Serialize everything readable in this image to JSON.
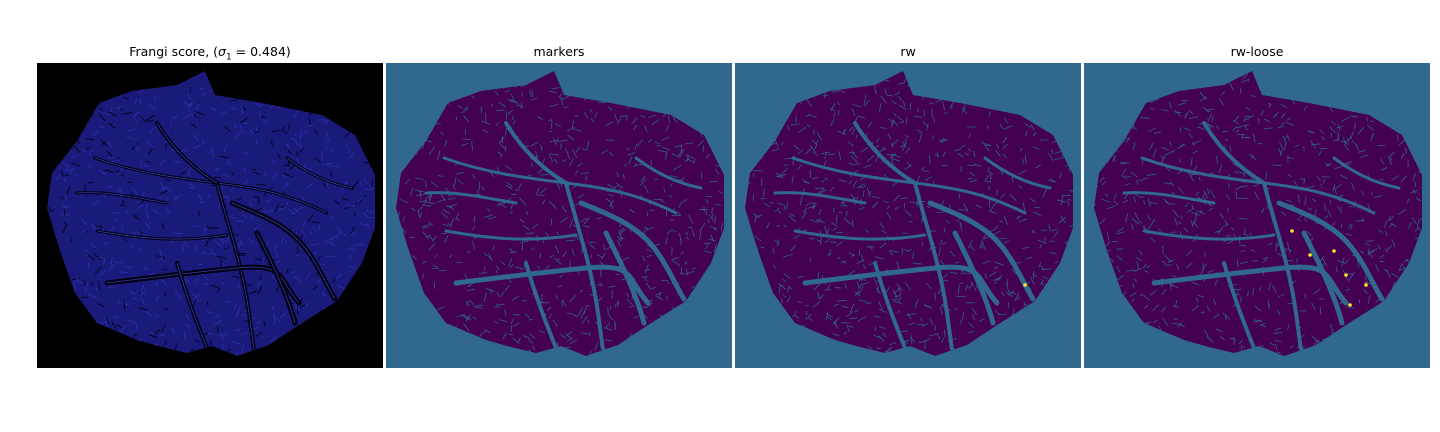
{
  "figure": {
    "panels": [
      {
        "title_prefix": "Frangi score, (",
        "title_symbol": "σ",
        "title_subscript": "1",
        "title_suffix": " = 0.484)",
        "colormap": "blue-on-black",
        "background": "#000000",
        "tissue_color": "#1a1a7a",
        "vessel_color": "#05051a"
      },
      {
        "title": "markers",
        "colormap": "viridis",
        "background": "#31688e",
        "tissue_color": "#440154",
        "vessel_color": "#31688e"
      },
      {
        "title": "rw",
        "colormap": "viridis",
        "background": "#31688e",
        "tissue_color": "#440154",
        "vessel_color": "#31688e",
        "highlight_color": "#fde725"
      },
      {
        "title": "rw-loose",
        "colormap": "viridis",
        "background": "#31688e",
        "tissue_color": "#440154",
        "vessel_color": "#31688e",
        "highlight_color": "#fde725"
      }
    ]
  }
}
